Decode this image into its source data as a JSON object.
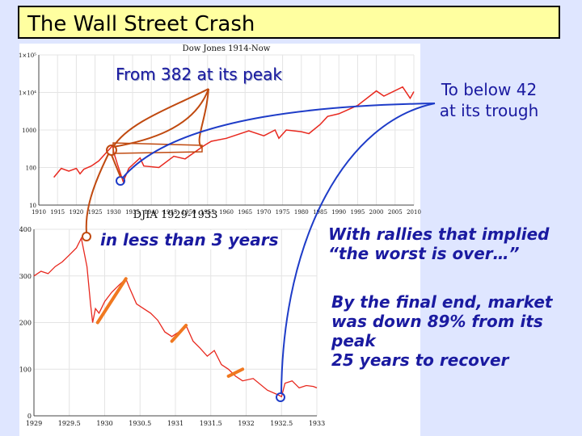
{
  "title": "The Wall Street Crash",
  "callouts": {
    "peak": "From 382 at its peak",
    "trough_line1": "To below 42",
    "trough_line2": "at its trough",
    "less_than": "in less than 3 years",
    "rallies_line1": "With rallies that implied",
    "rallies_line2": "“the worst is over…”",
    "final_line1": "By the final end, market",
    "final_line2": "was down 89% from its",
    "final_line3": "peak",
    "final_line4": "25 years to recover"
  },
  "colors": {
    "background": "#dfe6ff",
    "title_fill": "#ffffa0",
    "series": "#e8281e",
    "callout_text": "#1a1aa0",
    "connector_orange": "#c04a10",
    "connector_blue": "#1e3cc8",
    "rally_highlight": "#f07820"
  },
  "chart_data": [
    {
      "type": "line",
      "title": "Dow Jones 1914-Now",
      "xlabel": "",
      "ylabel": "",
      "yscale": "log",
      "xlim": [
        1910,
        2010
      ],
      "ylim": [
        10,
        100000
      ],
      "x_ticks": [
        "1910",
        "1915",
        "1920",
        "1925",
        "1930",
        "1935",
        "1940",
        "1945",
        "1950",
        "1955",
        "1960",
        "1965",
        "1970",
        "1975",
        "1980",
        "1985",
        "1990",
        "1995",
        "2000",
        "2005",
        "2010"
      ],
      "y_ticks": [
        {
          "value": 10,
          "label": "10"
        },
        {
          "value": 100,
          "label": "100"
        },
        {
          "value": 1000,
          "label": "1000"
        },
        {
          "value": 10000,
          "label": "1×10⁴"
        },
        {
          "value": 100000,
          "label": "1×10⁵"
        }
      ],
      "grid": true,
      "series": [
        {
          "x": [
            1914,
            1916,
            1918,
            1920,
            1921,
            1922,
            1924,
            1926,
            1928,
            1929.7,
            1930,
            1931,
            1932.5,
            1934,
            1937,
            1938,
            1942,
            1946,
            1949,
            1954,
            1956,
            1960,
            1966,
            1970,
            1973,
            1974,
            1976,
            1980,
            1982,
            1985,
            1987,
            1990,
            1995,
            2000,
            2002,
            2007,
            2009,
            2010
          ],
          "y": [
            55,
            95,
            80,
            95,
            68,
            90,
            110,
            150,
            250,
            382,
            250,
            120,
            42,
            95,
            180,
            110,
            100,
            200,
            170,
            380,
            500,
            600,
            950,
            700,
            1000,
            600,
            1000,
            900,
            800,
            1400,
            2300,
            2700,
            4500,
            11000,
            8000,
            14000,
            7000,
            10500
          ]
        }
      ]
    },
    {
      "type": "line",
      "title": "DJIA 1929-1933",
      "xlabel": "",
      "ylabel": "",
      "xlim": [
        1929,
        1933
      ],
      "ylim": [
        0,
        400
      ],
      "x_ticks": [
        "1929",
        "1929.5",
        "1930",
        "1930.5",
        "1931",
        "1931.5",
        "1932",
        "1932.5",
        "1933"
      ],
      "y_ticks": [
        {
          "value": 0,
          "label": "0"
        },
        {
          "value": 100,
          "label": "100"
        },
        {
          "value": 200,
          "label": "200"
        },
        {
          "value": 300,
          "label": "300"
        },
        {
          "value": 400,
          "label": "400"
        }
      ],
      "grid": true,
      "series": [
        {
          "x": [
            1929.0,
            1929.1,
            1929.2,
            1929.3,
            1929.4,
            1929.5,
            1929.6,
            1929.67,
            1929.75,
            1929.8,
            1929.83,
            1929.87,
            1929.92,
            1930.0,
            1930.1,
            1930.2,
            1930.3,
            1930.35,
            1930.45,
            1930.55,
            1930.65,
            1930.75,
            1930.85,
            1930.95,
            1931.05,
            1931.15,
            1931.25,
            1931.35,
            1931.45,
            1931.55,
            1931.65,
            1931.75,
            1931.85,
            1931.95,
            1932.1,
            1932.3,
            1932.45,
            1932.5,
            1932.55,
            1932.65,
            1932.75,
            1932.85,
            1932.95,
            1933.0
          ],
          "y": [
            300,
            310,
            305,
            320,
            330,
            345,
            360,
            381,
            320,
            240,
            200,
            230,
            220,
            245,
            265,
            280,
            294,
            275,
            240,
            230,
            220,
            205,
            180,
            170,
            180,
            194,
            160,
            145,
            128,
            140,
            110,
            100,
            85,
            75,
            80,
            55,
            45,
            41,
            70,
            75,
            60,
            65,
            63,
            60
          ]
        }
      ],
      "highlighted_rallies": [
        {
          "x": [
            1929.9,
            1930.3
          ],
          "y": [
            200,
            294
          ]
        },
        {
          "x": [
            1930.95,
            1931.15
          ],
          "y": [
            160,
            194
          ]
        },
        {
          "x": [
            1931.75,
            1931.95
          ],
          "y": [
            85,
            100
          ]
        }
      ]
    }
  ]
}
